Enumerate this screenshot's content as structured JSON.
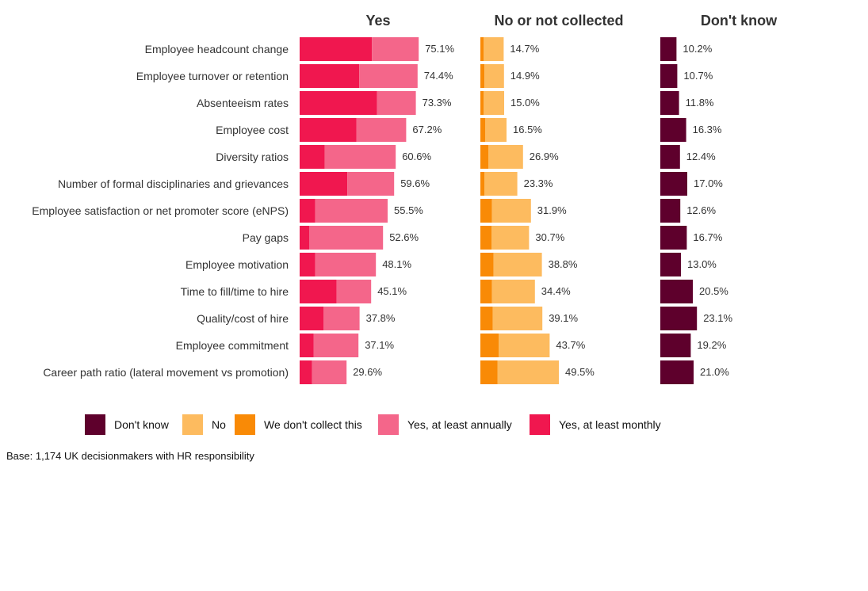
{
  "chart_data": {
    "type": "bar",
    "orientation": "horizontal",
    "stacked": true,
    "categories": [
      "Employee headcount change",
      "Employee turnover or retention",
      "Absenteeism rates",
      "Employee cost",
      "Diversity ratios",
      "Number of formal disciplinaries and grievances",
      "Employee satisfaction or net promoter score (eNPS)",
      "Pay gaps",
      "Employee motivation",
      "Time to fill/time to hire",
      "Quality/cost of hire",
      "Employee commitment",
      "Career path ratio (lateral movement vs promotion)"
    ],
    "panels": [
      {
        "title": "Yes",
        "series_keys": [
          "yes_monthly",
          "yes_annually"
        ],
        "totals": [
          75.1,
          74.4,
          73.3,
          67.2,
          60.6,
          59.6,
          55.5,
          52.6,
          48.1,
          45.1,
          37.8,
          37.1,
          29.6
        ],
        "total_labels": [
          "75.1%",
          "74.4%",
          "73.3%",
          "67.2%",
          "60.6%",
          "59.6%",
          "55.5%",
          "52.6%",
          "48.1%",
          "45.1%",
          "37.8%",
          "37.1%",
          "29.6%"
        ]
      },
      {
        "title": "No or not collected",
        "series_keys": [
          "not_collect",
          "no"
        ],
        "totals": [
          14.7,
          14.9,
          15.0,
          16.5,
          26.9,
          23.3,
          31.9,
          30.7,
          38.8,
          34.4,
          39.1,
          43.7,
          49.5
        ],
        "total_labels": [
          "14.7%",
          "14.9%",
          "15.0%",
          "16.5%",
          "26.9%",
          "23.3%",
          "31.9%",
          "30.7%",
          "38.8%",
          "34.4%",
          "39.1%",
          "43.7%",
          "49.5%"
        ]
      },
      {
        "title": "Don't know",
        "series_keys": [
          "dont_know"
        ],
        "totals": [
          10.2,
          10.7,
          11.8,
          16.3,
          12.4,
          17.0,
          12.6,
          16.7,
          13.0,
          20.5,
          23.1,
          19.2,
          21.0
        ],
        "total_labels": [
          "10.2%",
          "10.7%",
          "11.8%",
          "16.3%",
          "12.4%",
          "17.0%",
          "12.6%",
          "16.7%",
          "13.0%",
          "20.5%",
          "23.1%",
          "19.2%",
          "21.0%"
        ]
      }
    ],
    "series": [
      {
        "key": "yes_monthly",
        "name": "Yes, at least monthly",
        "color": "#F0174F",
        "values": [
          45.6,
          37.6,
          48.8,
          35.9,
          15.8,
          30.1,
          9.8,
          6.0,
          9.8,
          23.3,
          15.0,
          8.9,
          7.8
        ]
      },
      {
        "key": "yes_annually",
        "name": "Yes, at least annually",
        "color": "#F4668A",
        "values": [
          29.5,
          36.8,
          24.5,
          31.3,
          44.8,
          29.5,
          45.7,
          46.6,
          38.3,
          21.8,
          22.8,
          28.2,
          21.8
        ]
      },
      {
        "key": "not_collect",
        "name": "We don't collect this",
        "color": "#F98A06",
        "values": [
          2.0,
          2.6,
          2.0,
          3.0,
          5.0,
          2.5,
          7.3,
          7.0,
          8.3,
          7.3,
          7.8,
          11.5,
          10.9
        ]
      },
      {
        "key": "no",
        "name": "No",
        "color": "#FDBB5F",
        "values": [
          12.7,
          12.3,
          13.0,
          13.5,
          21.9,
          20.8,
          24.6,
          23.7,
          30.5,
          27.1,
          31.3,
          32.2,
          38.6
        ]
      },
      {
        "key": "dont_know",
        "name": "Don't know",
        "color": "#5E002C",
        "values": [
          10.2,
          10.7,
          11.8,
          16.3,
          12.4,
          17.0,
          12.6,
          16.7,
          13.0,
          20.5,
          23.1,
          19.2,
          21.0
        ]
      }
    ],
    "legend": {
      "position": "bottom",
      "order": [
        "dont_know",
        "no",
        "not_collect",
        "yes_annually",
        "yes_monthly"
      ]
    },
    "grid": false,
    "xlim": [
      0,
      100
    ],
    "footnote": "Base: 1,174 UK decisionmakers with HR responsibility"
  }
}
